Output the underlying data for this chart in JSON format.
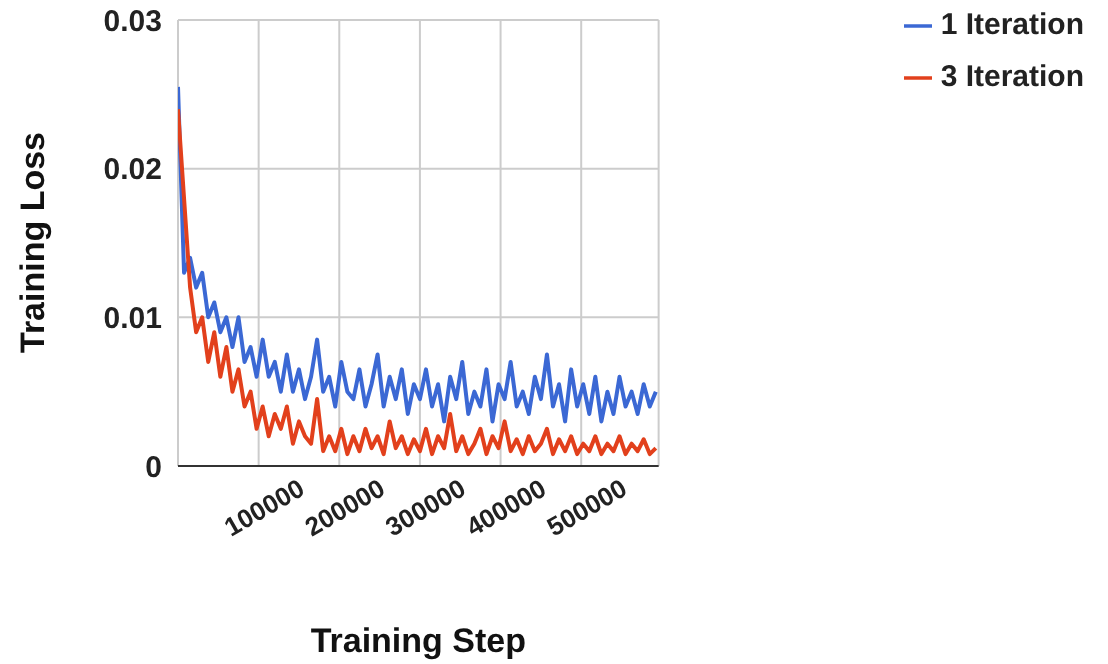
{
  "chart_data": {
    "type": "line",
    "xlabel": "Training Step",
    "ylabel": "Training Loss",
    "x": [
      0,
      7500,
      15000,
      22500,
      30000,
      37500,
      45000,
      52500,
      60000,
      67500,
      75000,
      82500,
      90000,
      97500,
      105000,
      112500,
      120000,
      127500,
      135000,
      142500,
      150000,
      157500,
      165000,
      172500,
      180000,
      187500,
      195000,
      202500,
      210000,
      217500,
      225000,
      232500,
      240000,
      247500,
      255000,
      262500,
      270000,
      277500,
      285000,
      292500,
      300000,
      307500,
      315000,
      322500,
      330000,
      337500,
      345000,
      352500,
      360000,
      367500,
      375000,
      382500,
      390000,
      397500,
      405000,
      412500,
      420000,
      427500,
      435000,
      442500,
      450000,
      457500,
      465000,
      472500,
      480000,
      487500,
      495000,
      502500,
      510000,
      517500,
      525000,
      532500,
      540000,
      547500,
      555000,
      562500,
      570000,
      577500,
      585000,
      592500
    ],
    "series": [
      {
        "name": "1 Iteration",
        "color": "#3b68d4",
        "values": [
          0.0255,
          0.013,
          0.014,
          0.012,
          0.013,
          0.01,
          0.011,
          0.009,
          0.01,
          0.008,
          0.01,
          0.007,
          0.008,
          0.006,
          0.0085,
          0.006,
          0.007,
          0.005,
          0.0075,
          0.005,
          0.0065,
          0.0045,
          0.006,
          0.0085,
          0.005,
          0.006,
          0.004,
          0.007,
          0.005,
          0.0045,
          0.0065,
          0.004,
          0.0055,
          0.0075,
          0.004,
          0.006,
          0.0045,
          0.0065,
          0.0035,
          0.0055,
          0.0045,
          0.0065,
          0.004,
          0.0055,
          0.003,
          0.006,
          0.0045,
          0.007,
          0.0035,
          0.005,
          0.004,
          0.0065,
          0.003,
          0.0055,
          0.0045,
          0.007,
          0.004,
          0.005,
          0.0035,
          0.006,
          0.0045,
          0.0075,
          0.004,
          0.0055,
          0.003,
          0.0065,
          0.004,
          0.0055,
          0.0035,
          0.006,
          0.003,
          0.005,
          0.0035,
          0.006,
          0.004,
          0.005,
          0.0035,
          0.0055,
          0.004,
          0.005
        ]
      },
      {
        "name": "3 Iteration",
        "color": "#e2401c",
        "values": [
          0.024,
          0.018,
          0.012,
          0.009,
          0.01,
          0.007,
          0.009,
          0.006,
          0.008,
          0.005,
          0.0065,
          0.004,
          0.005,
          0.0025,
          0.004,
          0.002,
          0.0035,
          0.0025,
          0.004,
          0.0015,
          0.003,
          0.002,
          0.0015,
          0.0045,
          0.001,
          0.002,
          0.001,
          0.0025,
          0.0008,
          0.002,
          0.001,
          0.0025,
          0.0012,
          0.002,
          0.0008,
          0.003,
          0.0012,
          0.002,
          0.0008,
          0.0018,
          0.001,
          0.0025,
          0.0008,
          0.002,
          0.0012,
          0.0035,
          0.001,
          0.002,
          0.0008,
          0.0015,
          0.0025,
          0.0008,
          0.002,
          0.0012,
          0.003,
          0.001,
          0.0018,
          0.0008,
          0.002,
          0.001,
          0.0015,
          0.0025,
          0.0008,
          0.0018,
          0.001,
          0.002,
          0.0008,
          0.0015,
          0.001,
          0.002,
          0.0008,
          0.0015,
          0.001,
          0.002,
          0.0008,
          0.0015,
          0.001,
          0.0018,
          0.0008,
          0.0012
        ]
      }
    ],
    "xlim": [
      0,
      596000
    ],
    "xticks": [
      100000,
      200000,
      300000,
      400000,
      500000
    ],
    "ylim": [
      0,
      0.03
    ],
    "yticks": [
      0,
      0.01,
      0.02,
      0.03
    ],
    "grid": true,
    "legend": "top right",
    "marker": "none",
    "line_style": "solid"
  }
}
